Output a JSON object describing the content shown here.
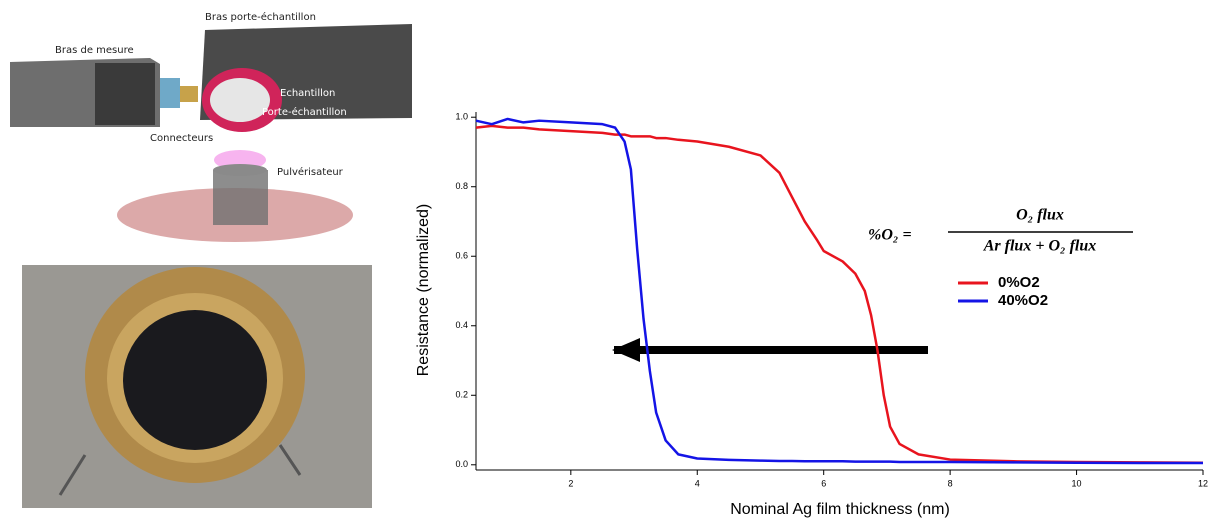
{
  "diagram": {
    "labels": [
      "Bras porte-échantillon",
      "Bras de mesure",
      "Echantillon",
      "Porte-échantillon",
      "Connecteurs",
      "Pulvérisateur"
    ]
  },
  "chart_data": {
    "type": "line",
    "x_label": "Nominal Ag film thickness (nm)",
    "y_label": "Resistance (normalized)",
    "formula": {
      "lhs": "%O₂ =",
      "numerator": "O₂ flux",
      "denominator": "Ar flux + O₂ flux"
    },
    "x": [
      0.5,
      0.75,
      1,
      1.25,
      1.5,
      2,
      2.5,
      2.7,
      2.85,
      2.95,
      3.05,
      3.15,
      3.25,
      3.35,
      3.5,
      3.7,
      4,
      4.5,
      5,
      5.3,
      5.5,
      5.7,
      5.9,
      6,
      6.3,
      6.5,
      6.65,
      6.75,
      6.85,
      6.95,
      7.05,
      7.2,
      7.5,
      8,
      9,
      10,
      11,
      12
    ],
    "series": [
      {
        "name": "0%O2",
        "color": "#e8141e",
        "values": [
          0.97,
          0.975,
          0.97,
          0.97,
          0.965,
          0.96,
          0.955,
          0.95,
          0.95,
          0.945,
          0.945,
          0.945,
          0.945,
          0.94,
          0.94,
          0.935,
          0.93,
          0.915,
          0.89,
          0.84,
          0.77,
          0.7,
          0.645,
          0.615,
          0.585,
          0.55,
          0.5,
          0.43,
          0.33,
          0.2,
          0.11,
          0.06,
          0.03,
          0.015,
          0.01,
          0.008,
          0.007,
          0.006
        ]
      },
      {
        "name": "40%O2",
        "color": "#1414e6",
        "values": [
          0.99,
          0.98,
          0.995,
          0.985,
          0.99,
          0.985,
          0.98,
          0.97,
          0.93,
          0.85,
          0.62,
          0.42,
          0.27,
          0.15,
          0.07,
          0.03,
          0.018,
          0.014,
          0.012,
          0.011,
          0.011,
          0.01,
          0.01,
          0.01,
          0.01,
          0.009,
          0.009,
          0.009,
          0.009,
          0.009,
          0.009,
          0.008,
          0.008,
          0.008,
          0.007,
          0.006,
          0.005,
          0.005
        ]
      }
    ],
    "xlim": [
      0.5,
      12
    ],
    "ylim": [
      -0.015,
      1.015
    ],
    "xticks": [
      2,
      4,
      6,
      8,
      10,
      12
    ],
    "yticks": [
      {
        "value": 0,
        "label": "0.0"
      },
      0.2,
      0.4,
      0.6,
      0.8,
      {
        "value": 1,
        "label": "1.0"
      }
    ],
    "legend": "right"
  }
}
